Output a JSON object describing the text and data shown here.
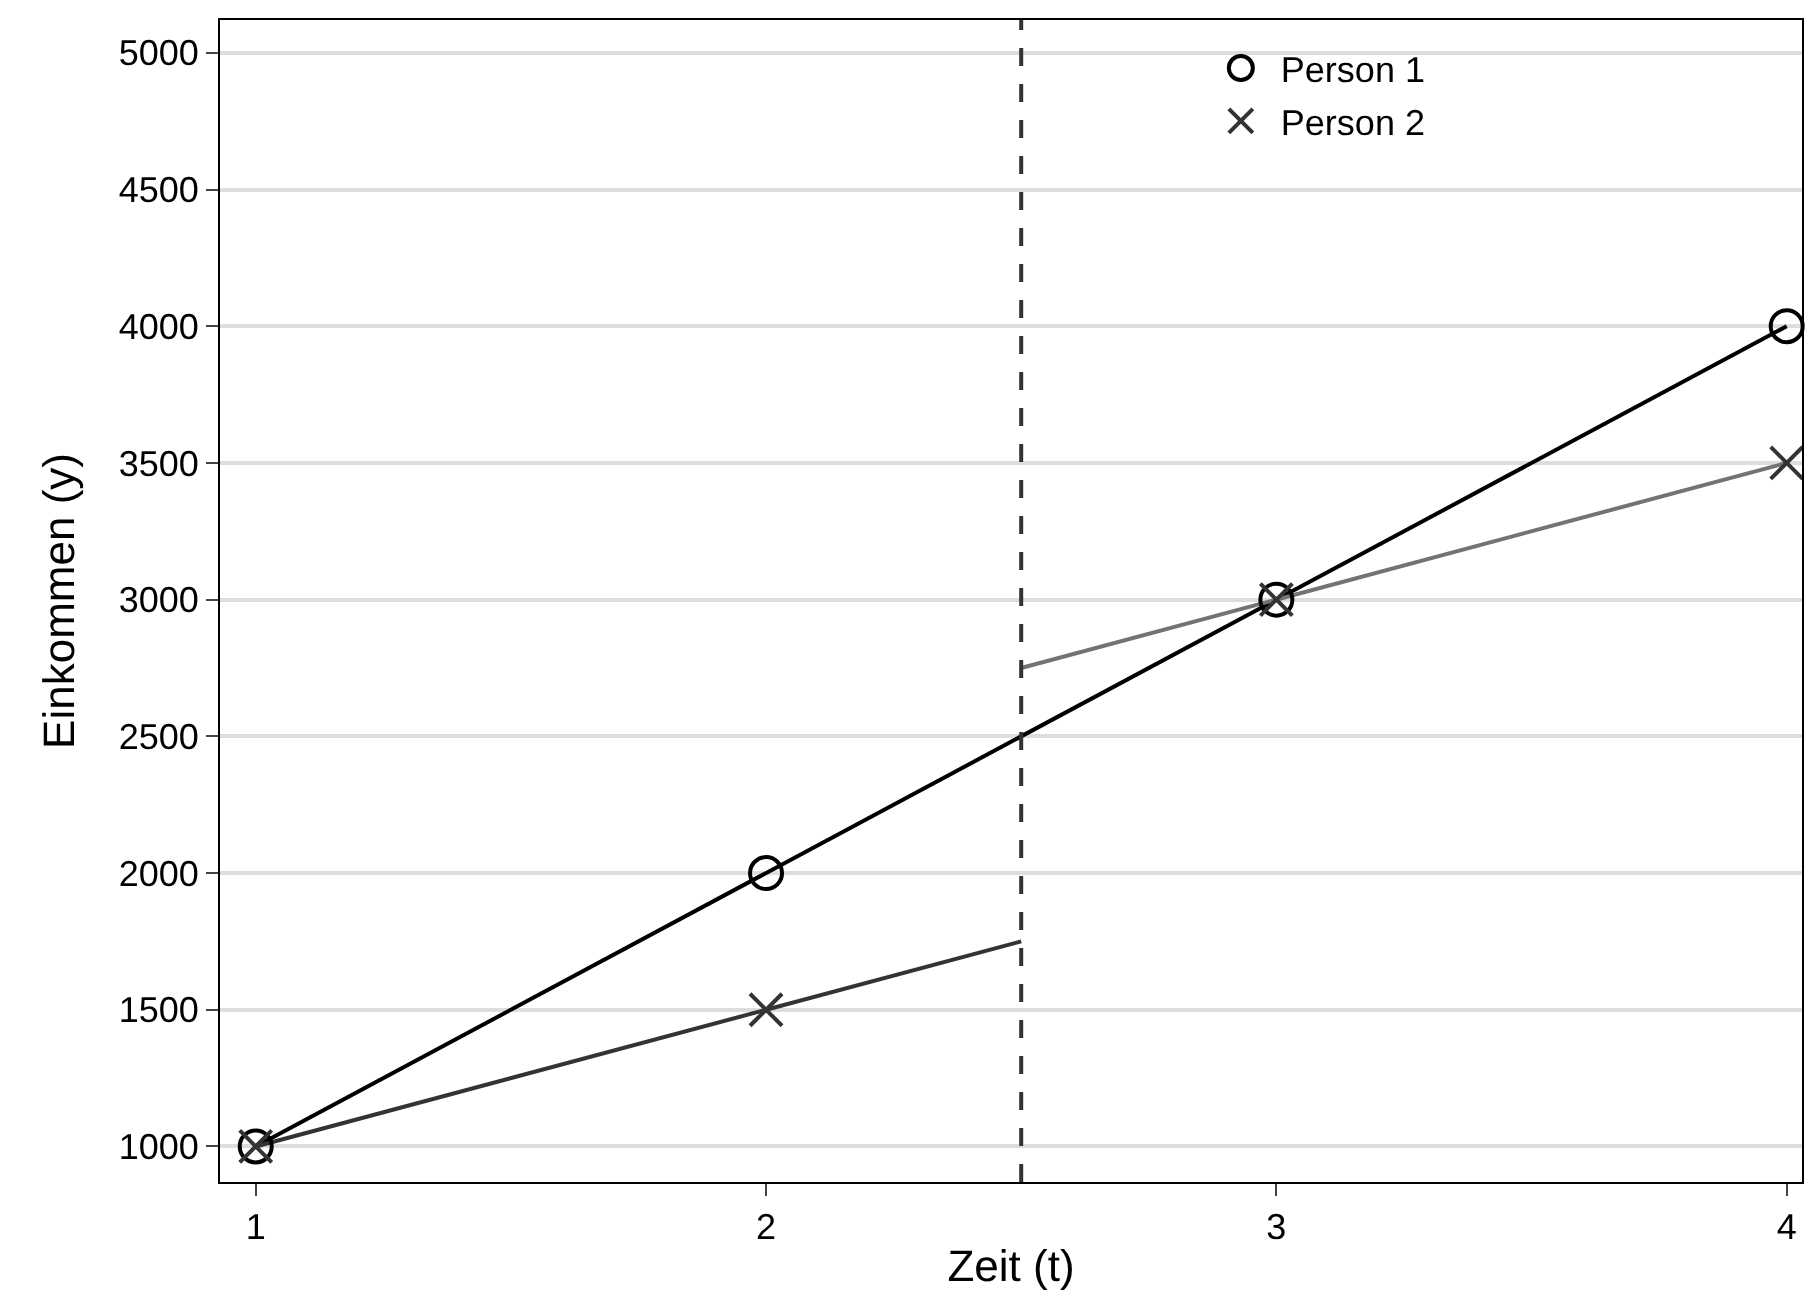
{
  "chart_data": {
    "type": "line",
    "xlabel": "Zeit (t)",
    "ylabel": "Einkommen (y)",
    "xlim": [
      0.93,
      4.03
    ],
    "xticks": [
      1,
      2,
      3,
      4
    ],
    "ylim": [
      870,
      5120
    ],
    "yticks": [
      1000,
      1500,
      2000,
      2500,
      3000,
      3500,
      4000,
      4500,
      5000
    ],
    "grid": "y",
    "legend": "top right",
    "series": [
      {
        "x": [
          1,
          4
        ],
        "values": [
          1000,
          4000
        ],
        "color": "#000000",
        "marker": "none"
      },
      {
        "x": [
          1,
          2.5
        ],
        "values": [
          1000,
          1750
        ],
        "color": "#333333",
        "marker": "none"
      },
      {
        "x": [
          2.5,
          4
        ],
        "values": [
          2750,
          3500
        ],
        "color": "#737373",
        "marker": "none"
      },
      {
        "type": "scatter",
        "name": "Person 1",
        "x": [
          1,
          2,
          3,
          4
        ],
        "values": [
          1000,
          2000,
          3000,
          4000
        ],
        "color": "#000000",
        "marker": "circle"
      },
      {
        "type": "scatter",
        "name": "Person 2",
        "x": [
          1,
          2,
          3,
          4
        ],
        "values": [
          1000,
          1500,
          3000,
          3500
        ],
        "color": "#333333",
        "marker": "cross"
      }
    ],
    "ref_lines": [
      {
        "axis": "x",
        "value": 2.5,
        "color": "#333333",
        "line_style": "dashed"
      }
    ]
  }
}
